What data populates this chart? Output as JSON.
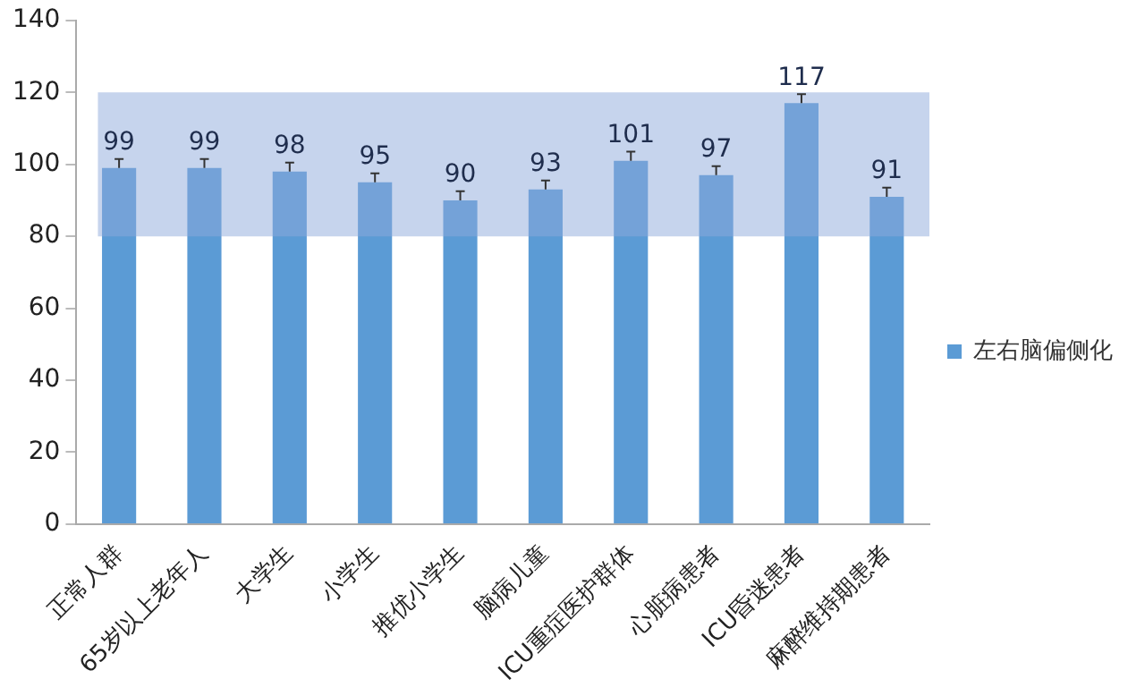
{
  "chart_data": {
    "type": "bar",
    "categories": [
      "正常人群",
      "65岁以上老年人",
      "大学生",
      "小学生",
      "推优小学生",
      "脑病儿童",
      "ICU重症医护群体",
      "心脏病患者",
      "ICU昏迷患者",
      "麻醉维持期患者"
    ],
    "series": [
      {
        "name": "左右脑偏侧化",
        "color": "#5b9bd5",
        "values": [
          99,
          99,
          98,
          95,
          90,
          93,
          101,
          97,
          117,
          91
        ],
        "errors": [
          [
            99,
            101.5
          ],
          [
            99,
            101.5
          ],
          [
            98,
            100.5
          ],
          [
            95,
            97.5
          ],
          [
            90,
            92.5
          ],
          [
            93,
            95.5
          ],
          [
            101,
            103.5
          ],
          [
            97,
            99.5
          ],
          [
            117,
            119.5
          ],
          [
            91,
            93.5
          ]
        ]
      }
    ],
    "data_labels": true,
    "ylim": [
      0,
      140
    ],
    "yticks": [
      0,
      20,
      40,
      60,
      80,
      100,
      120,
      140
    ],
    "bands": [
      {
        "axis": "y",
        "from": 80,
        "to": 120,
        "color": "#8eaadb"
      }
    ],
    "grid": false,
    "legend": "right"
  }
}
